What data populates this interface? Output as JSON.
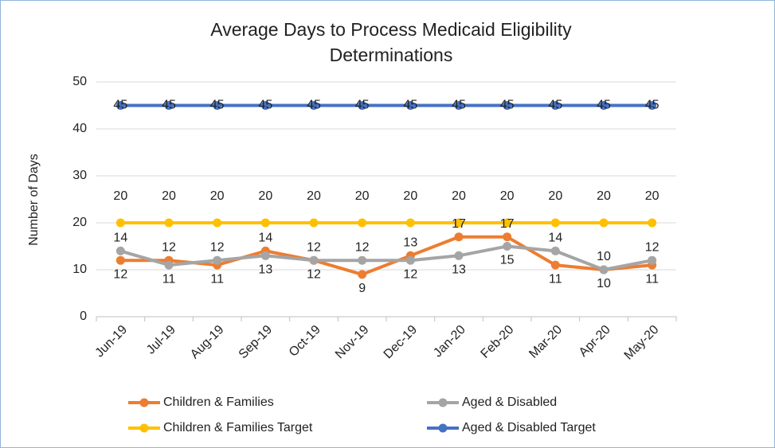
{
  "chart_data": {
    "type": "line",
    "title": "Average Days to Process Medicaid Eligibility Determinations",
    "y_label": "Number of Days",
    "categories": [
      "Jun-19",
      "Jul-19",
      "Aug-19",
      "Sep-19",
      "Oct-19",
      "Nov-19",
      "Dec-19",
      "Jan-20",
      "Feb-20",
      "Mar-20",
      "Apr-20",
      "May-20"
    ],
    "series": [
      {
        "name": "Children & Families",
        "color": "#ed7d31",
        "values": [
          12,
          12,
          11,
          14,
          12,
          9,
          13,
          17,
          17,
          11,
          10,
          11
        ]
      },
      {
        "name": "Aged & Disabled",
        "color": "#a5a5a5",
        "values": [
          14,
          11,
          12,
          13,
          12,
          12,
          12,
          13,
          15,
          14,
          10,
          12
        ]
      },
      {
        "name": "Children & Families Target",
        "color": "#ffc000",
        "values": [
          20,
          20,
          20,
          20,
          20,
          20,
          20,
          20,
          20,
          20,
          20,
          20
        ]
      },
      {
        "name": "Aged & Disabled Target",
        "color": "#4472c4",
        "values": [
          45,
          45,
          45,
          45,
          45,
          45,
          45,
          45,
          45,
          45,
          45,
          45
        ]
      }
    ],
    "ylim": [
      0,
      50
    ],
    "yticks": [
      0,
      10,
      20,
      30,
      40,
      50
    ],
    "grid": true,
    "legend": "bottom"
  }
}
